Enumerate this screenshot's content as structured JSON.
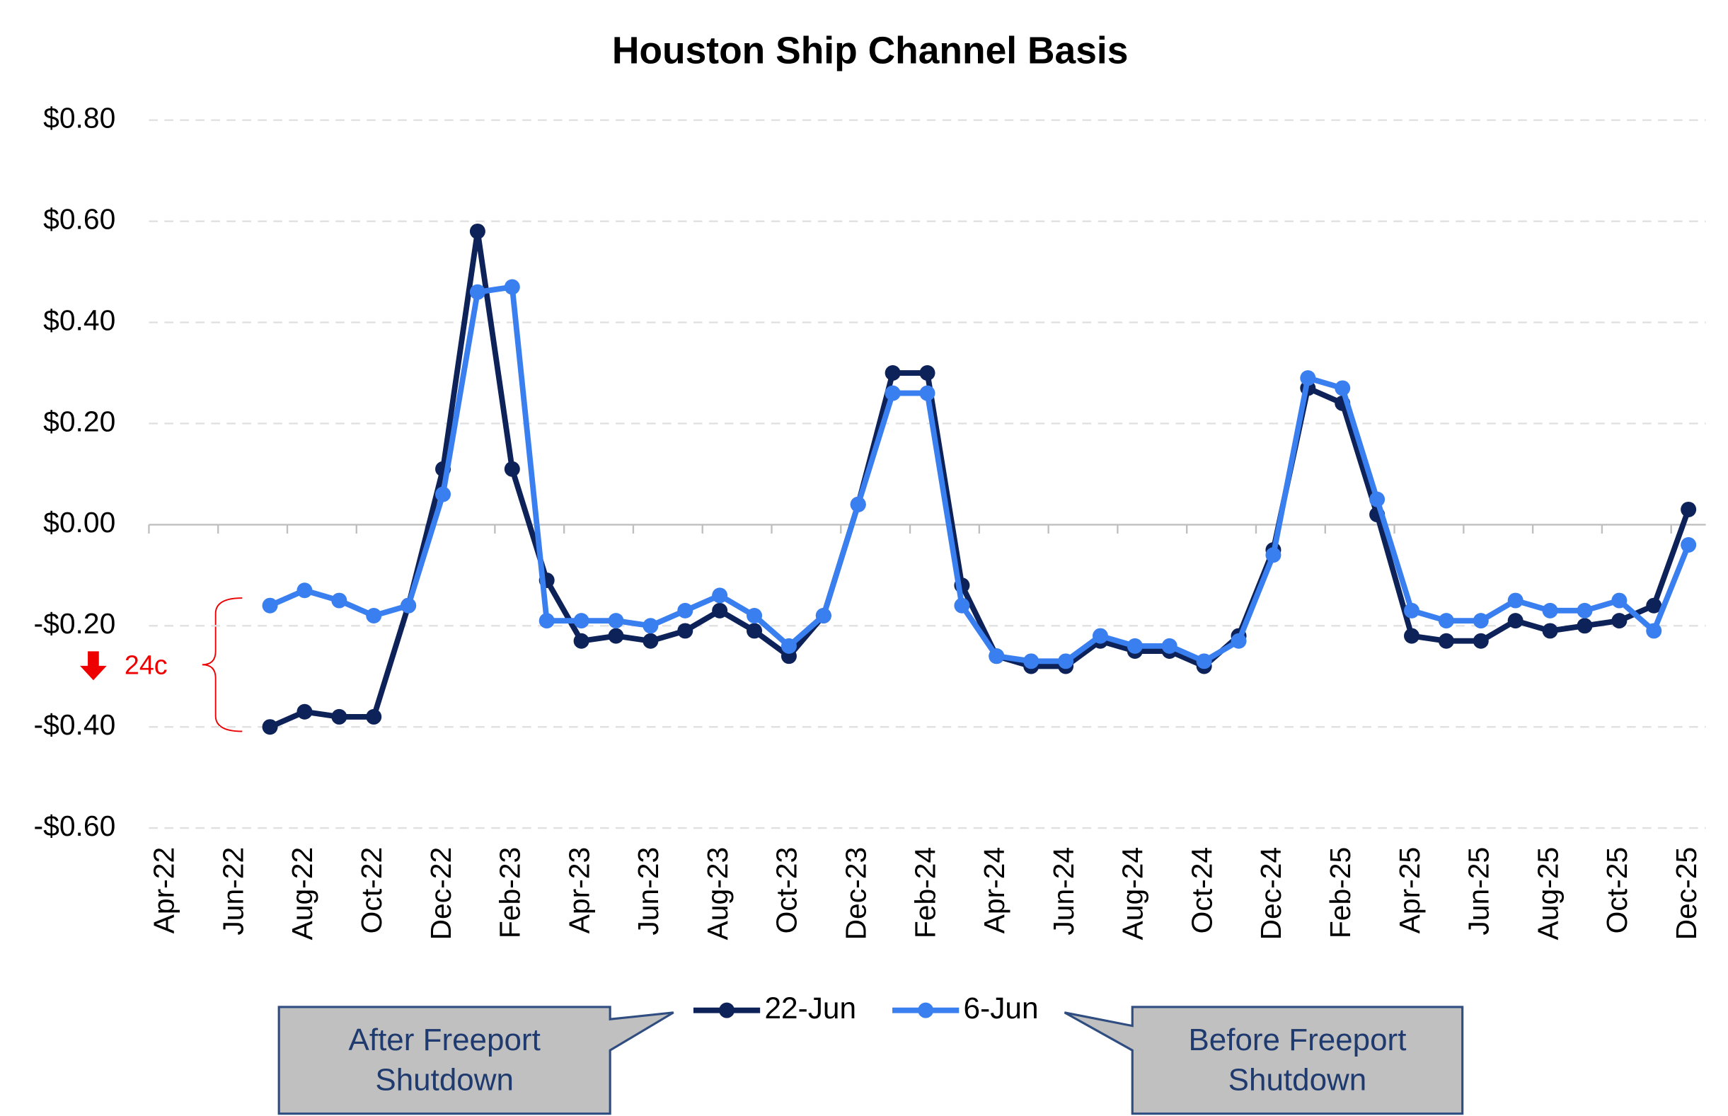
{
  "chart_data": {
    "type": "line",
    "title": "Houston Ship Channel Basis",
    "categories": [
      "Apr-22",
      null,
      "Jun-22",
      null,
      "Aug-22",
      null,
      "Oct-22",
      null,
      "Dec-22",
      null,
      "Feb-23",
      null,
      "Apr-23",
      null,
      "Jun-23",
      null,
      "Aug-23",
      null,
      "Oct-23",
      null,
      "Dec-23",
      null,
      "Feb-24",
      null,
      "Apr-24",
      null,
      "Jun-24",
      null,
      "Aug-24",
      null,
      "Oct-24",
      null,
      "Dec-24",
      null,
      "Feb-25",
      null,
      "Apr-25",
      null,
      "Jun-25",
      null,
      "Aug-25",
      null,
      "Oct-25",
      null,
      "Dec-25"
    ],
    "series": [
      {
        "name": "22-Jun",
        "color": "#0d2258",
        "values": [
          null,
          null,
          null,
          -0.4,
          -0.37,
          -0.38,
          -0.38,
          -0.16,
          0.11,
          0.58,
          0.11,
          -0.11,
          -0.23,
          -0.22,
          -0.23,
          -0.21,
          -0.17,
          -0.21,
          -0.26,
          -0.18,
          0.04,
          0.3,
          0.3,
          -0.12,
          -0.26,
          -0.28,
          -0.28,
          -0.23,
          -0.25,
          -0.25,
          -0.28,
          -0.22,
          -0.05,
          0.27,
          0.24,
          0.02,
          -0.22,
          -0.23,
          -0.23,
          -0.19,
          -0.21,
          -0.2,
          -0.19,
          -0.16,
          0.03
        ]
      },
      {
        "name": "6-Jun",
        "color": "#3a7ff0",
        "values": [
          null,
          null,
          null,
          -0.16,
          -0.13,
          -0.15,
          -0.18,
          -0.16,
          0.06,
          0.46,
          0.47,
          -0.19,
          -0.19,
          -0.19,
          -0.2,
          -0.17,
          -0.14,
          -0.18,
          -0.24,
          -0.18,
          0.04,
          0.26,
          0.26,
          -0.16,
          -0.26,
          -0.27,
          -0.27,
          -0.22,
          -0.24,
          -0.24,
          -0.27,
          -0.23,
          -0.06,
          0.29,
          0.27,
          0.05,
          -0.17,
          -0.19,
          -0.19,
          -0.15,
          -0.17,
          -0.17,
          -0.15,
          -0.21,
          -0.04
        ]
      }
    ],
    "ylim": [
      -0.6,
      0.8
    ],
    "yticks": [
      {
        "value": 0.8,
        "label": "$0.80"
      },
      {
        "value": 0.6,
        "label": "$0.60"
      },
      {
        "value": 0.4,
        "label": "$0.40"
      },
      {
        "value": 0.2,
        "label": "$0.20"
      },
      {
        "value": 0,
        "label": "$0.00"
      },
      {
        "value": -0.2,
        "label": "-$0.20"
      },
      {
        "value": -0.4,
        "label": "-$0.40"
      },
      {
        "value": -0.6,
        "label": "-$0.60"
      }
    ],
    "grid": true,
    "annotations": [
      {
        "text": "24c"
      },
      {
        "text": "After Freeport Shutdown"
      },
      {
        "text": "Before Freeport Shutdown"
      }
    ]
  }
}
